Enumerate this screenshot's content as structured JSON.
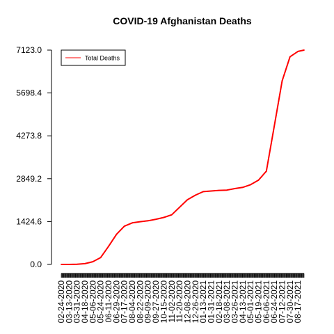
{
  "chart_data": {
    "type": "line",
    "title": "COVID-19 Afghanistan Deaths",
    "xlabel": "",
    "ylabel": "",
    "ylim": [
      0.0,
      7123.0
    ],
    "y_ticks": [
      "0.0",
      "1424.6",
      "2849.2",
      "4273.8",
      "5698.4",
      "7123.0"
    ],
    "x_ticks": [
      "02-24-2020",
      "03-13-2020",
      "03-31-2020",
      "04-18-2020",
      "05-06-2020",
      "05-24-2020",
      "06-11-2020",
      "06-29-2020",
      "07-17-2020",
      "08-04-2020",
      "08-22-2020",
      "09-09-2020",
      "09-27-2020",
      "10-15-2020",
      "11-02-2020",
      "11-20-2020",
      "12-08-2020",
      "12-26-2020",
      "01-13-2021",
      "01-31-2021",
      "02-18-2021",
      "03-08-2021",
      "03-26-2021",
      "04-13-2021",
      "05-01-2021",
      "05-19-2021",
      "06-06-2021",
      "06-24-2021",
      "07-12-2021",
      "07-30-2021",
      "08-17-2021"
    ],
    "legend": {
      "position": "top-left",
      "entries": [
        "Total Deaths"
      ]
    },
    "grid": false,
    "series": [
      {
        "name": "Total Deaths",
        "color": "#ff0000",
        "x": [
          "02-24-2020",
          "03-13-2020",
          "03-31-2020",
          "04-18-2020",
          "05-06-2020",
          "05-24-2020",
          "06-11-2020",
          "06-29-2020",
          "07-17-2020",
          "08-04-2020",
          "08-22-2020",
          "09-09-2020",
          "09-27-2020",
          "10-15-2020",
          "11-02-2020",
          "11-20-2020",
          "12-08-2020",
          "12-26-2020",
          "01-13-2021",
          "01-31-2021",
          "02-18-2021",
          "03-08-2021",
          "03-26-2021",
          "04-13-2021",
          "05-01-2021",
          "05-19-2021",
          "06-06-2021",
          "06-24-2021",
          "07-12-2021",
          "07-30-2021",
          "08-17-2021",
          "08-31-2021"
        ],
        "values": [
          0,
          0,
          5,
          25,
          90,
          230,
          600,
          1000,
          1270,
          1380,
          1420,
          1450,
          1500,
          1560,
          1650,
          1900,
          2150,
          2300,
          2420,
          2440,
          2460,
          2470,
          2520,
          2560,
          2650,
          2800,
          3100,
          4600,
          6100,
          6900,
          7080,
          7123
        ]
      }
    ]
  }
}
